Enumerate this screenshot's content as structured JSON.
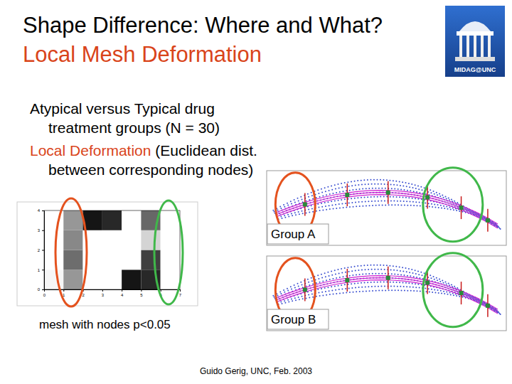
{
  "slide": {
    "title": "Shape Difference: Where and What?",
    "subtitle": "Local Mesh Deformation",
    "logo_text": "MIDAG@UNC",
    "bullets": [
      {
        "lines": [
          "Atypical versus Typical drug",
          "treatment groups (N = 30)"
        ]
      },
      {
        "highlight": "Local Deformation",
        "lines": [
          " (Euclidean dist.",
          "between corresponding nodes)"
        ]
      }
    ],
    "caption": "mesh with nodes p<0.05",
    "panels": [
      "Group A",
      "Group B"
    ],
    "footer": "Guido Gerig, UNC, Feb. 2003"
  },
  "chart_data": {
    "type": "heatmap",
    "xlim": [
      0,
      7
    ],
    "ylim": [
      0,
      4
    ],
    "xticks": [
      0,
      1,
      2,
      3,
      4,
      5,
      6,
      7
    ],
    "yticks": [
      0,
      1,
      2,
      3,
      4
    ],
    "zlim": [
      0,
      1
    ],
    "cells": [
      [
        0.07,
        0.5,
        0,
        0,
        0.93,
        0.87,
        0
      ],
      [
        0,
        0.65,
        0,
        0,
        0,
        0.8,
        0
      ],
      [
        0,
        0.55,
        0,
        0,
        0,
        0.27,
        0
      ],
      [
        0,
        0.5,
        0.93,
        0.87,
        0,
        0.67,
        0
      ]
    ]
  }
}
